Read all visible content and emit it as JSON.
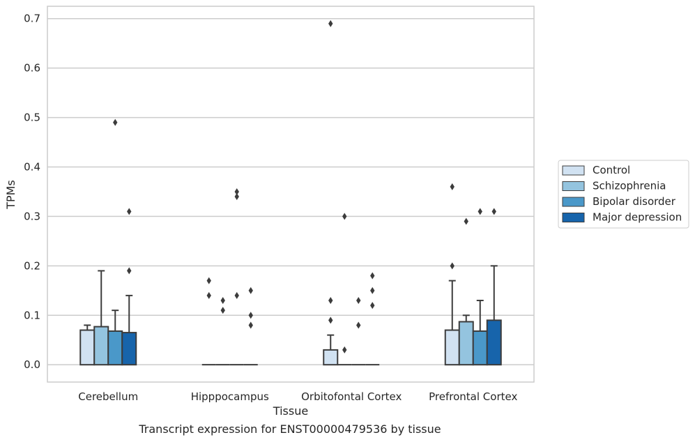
{
  "caption": "Transcript expression for ENST00000479536 by tissue",
  "chart_data": {
    "type": "bar",
    "xlabel": "Tissue",
    "ylabel": "TPMs",
    "ylim": [
      -0.035,
      0.725
    ],
    "yticks": [
      "0.0",
      "0.1",
      "0.2",
      "0.3",
      "0.4",
      "0.5",
      "0.6",
      "0.7"
    ],
    "grid": true,
    "legend_position": "right",
    "categories": [
      "Cerebellum",
      "Hipppocampus",
      "Orbitofontal Cortex",
      "Prefrontal Cortex"
    ],
    "series": [
      {
        "name": "Control",
        "color": "#d1e2f2",
        "values": [
          0.07,
          0.0,
          0.03,
          0.07
        ],
        "error_upper": [
          0.08,
          null,
          0.06,
          0.17
        ],
        "outliers": [
          [],
          [
            0.14,
            0.17
          ],
          [
            0.09,
            0.13,
            0.69
          ],
          [
            0.2,
            0.36
          ]
        ]
      },
      {
        "name": "Schizophrenia",
        "color": "#94c4df",
        "values": [
          0.077,
          0.0,
          0.0,
          0.087
        ],
        "error_upper": [
          0.19,
          null,
          null,
          0.1
        ],
        "outliers": [
          [],
          [
            0.11,
            0.13
          ],
          [
            0.03,
            0.3
          ],
          [
            0.29
          ]
        ]
      },
      {
        "name": "Bipolar disorder",
        "color": "#4a98c9",
        "values": [
          0.068,
          0.0,
          0.0,
          0.068
        ],
        "error_upper": [
          0.11,
          null,
          null,
          0.13
        ],
        "outliers": [
          [
            0.49
          ],
          [
            0.14,
            0.34,
            0.35
          ],
          [
            0.08,
            0.13
          ],
          [
            0.31
          ]
        ]
      },
      {
        "name": "Major depression",
        "color": "#1764ab",
        "values": [
          0.065,
          0.0,
          0.0,
          0.09
        ],
        "error_upper": [
          0.14,
          null,
          null,
          0.2
        ],
        "outliers": [
          [
            0.19,
            0.31
          ],
          [
            0.08,
            0.1,
            0.15
          ],
          [
            0.12,
            0.15,
            0.18
          ],
          [
            0.31
          ]
        ]
      }
    ]
  }
}
